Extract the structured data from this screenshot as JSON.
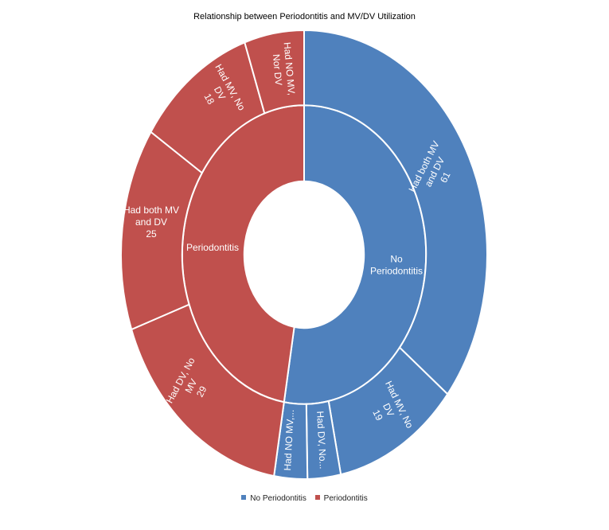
{
  "chart_data": {
    "type": "sunburst",
    "title": "Relationship between Periodontitis  and MV/DV Utilization",
    "colors": {
      "No Periodontitis": "#4F81BD",
      "Periodontitis": "#C0504D"
    },
    "legend": {
      "placement": "bottom",
      "items": [
        "No Periodontitis",
        "Periodontitis"
      ]
    },
    "inner_ring": [
      {
        "name": "No Periodontitis",
        "label": "No Periodontitis",
        "value": 90
      },
      {
        "name": "Periodontitis",
        "label": "Periodontitis",
        "value": 81
      }
    ],
    "outer_ring": [
      {
        "parent": "No Periodontitis",
        "label": "Had both MV and DV",
        "value": 61,
        "value_label": "61"
      },
      {
        "parent": "No Periodontitis",
        "label": "Had MV, No DV",
        "value": 19,
        "value_label": "19"
      },
      {
        "parent": "No Periodontitis",
        "label": "Had DV, No...",
        "value": 5,
        "value_label": ""
      },
      {
        "parent": "No Periodontitis",
        "label": "Had NO MV,...",
        "value": 5,
        "value_label": ""
      },
      {
        "parent": "Periodontitis",
        "label": "Had DV, No MV",
        "value": 29,
        "value_label": "29"
      },
      {
        "parent": "Periodontitis",
        "label": "Had both MV and DV",
        "value": 25,
        "value_label": "25"
      },
      {
        "parent": "Periodontitis",
        "label": "Had MV, No DV",
        "value": 18,
        "value_label": "18"
      },
      {
        "parent": "Periodontitis",
        "label": "Had NO MV, Nor DV",
        "value": 9,
        "value_label": ""
      }
    ]
  }
}
